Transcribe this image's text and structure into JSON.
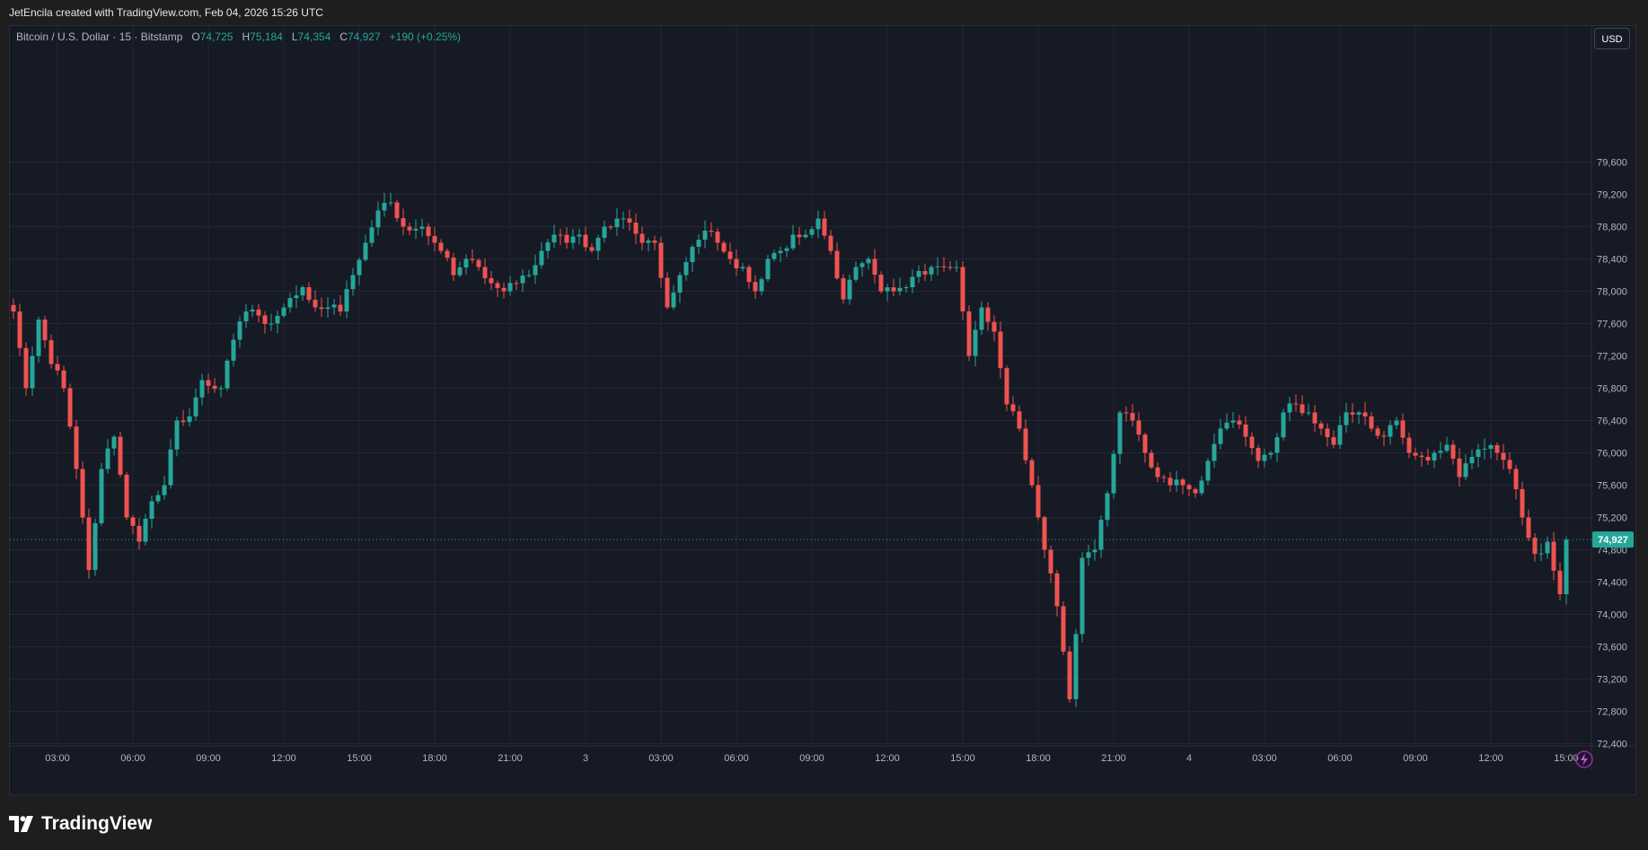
{
  "header": {
    "credit": "JetEncila created with TradingView.com, Feb 04, 2026 15:26 UTC"
  },
  "legend": {
    "symbol": "Bitcoin / U.S. Dollar · 15 · Bitstamp",
    "o_label": "O",
    "o_value": "74,725",
    "h_label": "H",
    "h_value": "75,184",
    "l_label": "L",
    "l_value": "74,354",
    "c_label": "C",
    "c_value": "74,927",
    "change": "+190 (+0.25%)"
  },
  "currency_button": "USD",
  "brand": {
    "name": "TradingView"
  },
  "colors": {
    "up": "#26a69a",
    "down": "#ef5350",
    "background": "#161a25",
    "grid": "#242733"
  },
  "chart_data": {
    "type": "candlestick",
    "symbol": "BTCUSD",
    "interval": "15",
    "exchange": "Bitstamp",
    "last_price_label": "74,927",
    "last_price": 74927,
    "ylim": [
      72200,
      79900
    ],
    "y_ticks": [
      72400,
      72800,
      73200,
      73600,
      74000,
      74400,
      74800,
      75200,
      75600,
      76000,
      76400,
      76800,
      77200,
      77600,
      78000,
      78400,
      78800,
      79200,
      79600
    ],
    "y_tick_labels": [
      "72,400",
      "72,800",
      "73,200",
      "73,600",
      "74,000",
      "74,400",
      "74,800",
      "75,200",
      "75,600",
      "76,000",
      "76,400",
      "76,800",
      "77,200",
      "77,600",
      "78,000",
      "78,400",
      "78,800",
      "79,200",
      "79,600"
    ],
    "x_ticks": [
      {
        "label": "03:00",
        "bar": 7
      },
      {
        "label": "06:00",
        "bar": 19
      },
      {
        "label": "09:00",
        "bar": 31
      },
      {
        "label": "12:00",
        "bar": 43
      },
      {
        "label": "15:00",
        "bar": 55
      },
      {
        "label": "18:00",
        "bar": 67
      },
      {
        "label": "21:00",
        "bar": 79
      },
      {
        "label": "3",
        "bar": 91
      },
      {
        "label": "03:00",
        "bar": 103
      },
      {
        "label": "06:00",
        "bar": 115
      },
      {
        "label": "09:00",
        "bar": 127
      },
      {
        "label": "12:00",
        "bar": 139
      },
      {
        "label": "15:00",
        "bar": 151
      },
      {
        "label": "18:00",
        "bar": 163
      },
      {
        "label": "21:00",
        "bar": 175
      },
      {
        "label": "4",
        "bar": 187
      },
      {
        "label": "03:00",
        "bar": 199
      },
      {
        "label": "06:00",
        "bar": 211
      },
      {
        "label": "09:00",
        "bar": 223
      },
      {
        "label": "12:00",
        "bar": 235
      },
      {
        "label": "15:00",
        "bar": 247
      }
    ],
    "anchors": [
      [
        0,
        77750
      ],
      [
        2,
        76800
      ],
      [
        4,
        77650
      ],
      [
        6,
        77100
      ],
      [
        8,
        76800
      ],
      [
        10,
        75800
      ],
      [
        12,
        74550
      ],
      [
        14,
        75800
      ],
      [
        16,
        76200
      ],
      [
        18,
        75200
      ],
      [
        20,
        74900
      ],
      [
        22,
        75400
      ],
      [
        24,
        75600
      ],
      [
        26,
        76400
      ],
      [
        28,
        76450
      ],
      [
        30,
        76900
      ],
      [
        33,
        76800
      ],
      [
        35,
        77400
      ],
      [
        37,
        77750
      ],
      [
        39,
        77700
      ],
      [
        41,
        77600
      ],
      [
        43,
        77800
      ],
      [
        46,
        78050
      ],
      [
        48,
        77800
      ],
      [
        50,
        77800
      ],
      [
        52,
        77750
      ],
      [
        54,
        78200
      ],
      [
        56,
        78600
      ],
      [
        58,
        79000
      ],
      [
        60,
        79100
      ],
      [
        62,
        78800
      ],
      [
        65,
        78800
      ],
      [
        68,
        78500
      ],
      [
        70,
        78200
      ],
      [
        72,
        78400
      ],
      [
        74,
        78300
      ],
      [
        76,
        78100
      ],
      [
        78,
        78000
      ],
      [
        80,
        78100
      ],
      [
        82,
        78200
      ],
      [
        84,
        78500
      ],
      [
        86,
        78700
      ],
      [
        88,
        78600
      ],
      [
        90,
        78700
      ],
      [
        92,
        78500
      ],
      [
        94,
        78800
      ],
      [
        96,
        78900
      ],
      [
        98,
        78850
      ],
      [
        100,
        78600
      ],
      [
        102,
        78600
      ],
      [
        104,
        77800
      ],
      [
        106,
        78200
      ],
      [
        108,
        78550
      ],
      [
        110,
        78750
      ],
      [
        112,
        78600
      ],
      [
        114,
        78400
      ],
      [
        116,
        78300
      ],
      [
        118,
        78000
      ],
      [
        120,
        78400
      ],
      [
        122,
        78500
      ],
      [
        124,
        78700
      ],
      [
        126,
        78700
      ],
      [
        128,
        78900
      ],
      [
        130,
        78500
      ],
      [
        132,
        77900
      ],
      [
        134,
        78300
      ],
      [
        136,
        78400
      ],
      [
        138,
        78000
      ],
      [
        140,
        78000
      ],
      [
        142,
        78050
      ],
      [
        144,
        78250
      ],
      [
        146,
        78300
      ],
      [
        148,
        78300
      ],
      [
        150,
        78300
      ],
      [
        152,
        77200
      ],
      [
        154,
        77800
      ],
      [
        156,
        77500
      ],
      [
        158,
        76600
      ],
      [
        160,
        76300
      ],
      [
        162,
        75600
      ],
      [
        164,
        74800
      ],
      [
        166,
        74100
      ],
      [
        168,
        72950
      ],
      [
        170,
        74700
      ],
      [
        172,
        74800
      ],
      [
        174,
        75500
      ],
      [
        176,
        76500
      ],
      [
        178,
        76400
      ],
      [
        180,
        76000
      ],
      [
        182,
        75700
      ],
      [
        184,
        75600
      ],
      [
        186,
        75600
      ],
      [
        188,
        75500
      ],
      [
        190,
        75900
      ],
      [
        192,
        76300
      ],
      [
        194,
        76400
      ],
      [
        196,
        76200
      ],
      [
        198,
        75900
      ],
      [
        200,
        76000
      ],
      [
        202,
        76500
      ],
      [
        204,
        76600
      ],
      [
        206,
        76500
      ],
      [
        208,
        76300
      ],
      [
        210,
        76100
      ],
      [
        212,
        76500
      ],
      [
        214,
        76500
      ],
      [
        216,
        76300
      ],
      [
        218,
        76200
      ],
      [
        220,
        76400
      ],
      [
        222,
        76000
      ],
      [
        224,
        75950
      ],
      [
        226,
        76000
      ],
      [
        228,
        76100
      ],
      [
        230,
        75700
      ],
      [
        232,
        75950
      ],
      [
        234,
        76050
      ],
      [
        236,
        76000
      ],
      [
        238,
        75800
      ],
      [
        240,
        75200
      ],
      [
        242,
        74750
      ],
      [
        244,
        74900
      ],
      [
        246,
        74250
      ],
      [
        247,
        74927
      ]
    ]
  }
}
